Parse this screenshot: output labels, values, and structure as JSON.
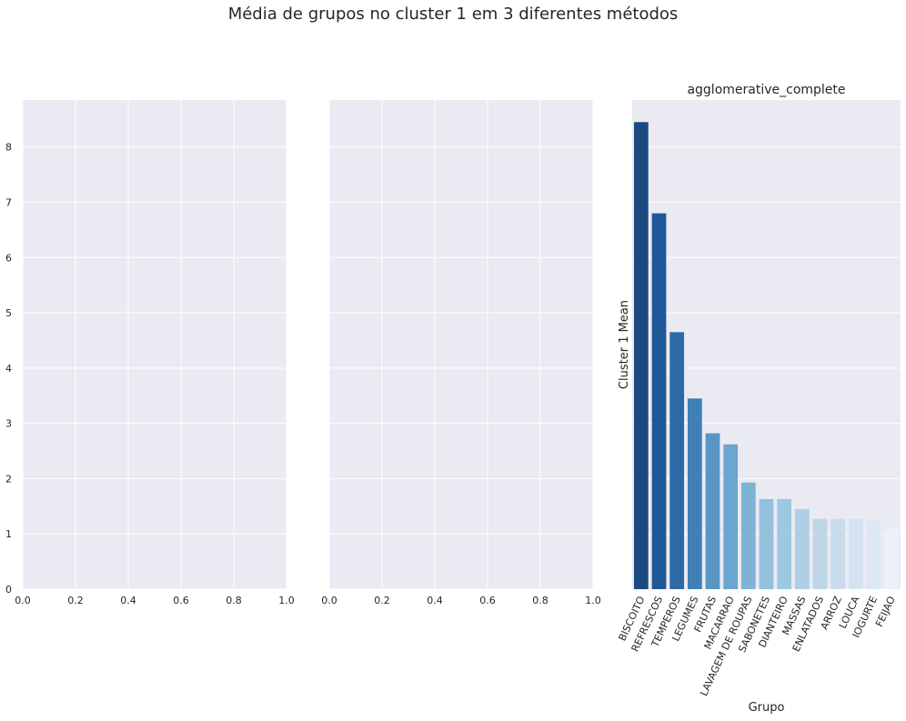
{
  "figure": {
    "suptitle": "Média de grupos no cluster 1 em 3 diferentes métodos"
  },
  "chart_data": [
    {
      "type": "empty",
      "title": "",
      "xlim": [
        0.0,
        1.0
      ],
      "ylim": [
        0,
        8.85
      ],
      "x_ticks": [
        "0.0",
        "0.2",
        "0.4",
        "0.6",
        "0.8",
        "1.0"
      ],
      "y_ticks": [
        "0",
        "1",
        "2",
        "3",
        "4",
        "5",
        "6",
        "7",
        "8"
      ],
      "xlabel": "",
      "ylabel": "",
      "grid": true
    },
    {
      "type": "empty",
      "title": "",
      "xlim": [
        0.0,
        1.0
      ],
      "ylim": [
        0,
        8.85
      ],
      "x_ticks": [
        "0.0",
        "0.2",
        "0.4",
        "0.6",
        "0.8",
        "1.0"
      ],
      "y_ticks": [],
      "xlabel": "",
      "ylabel": "",
      "grid": true
    },
    {
      "type": "bar",
      "title": "agglomerative_complete",
      "xlabel": "Grupo",
      "ylabel": "Cluster 1 Mean",
      "ylim": [
        0,
        8.85
      ],
      "grid": true,
      "categories": [
        "BISCOITO",
        "REFRESCOS",
        "TEMPEROS",
        "LEGUMES",
        "FRUTAS",
        "MACARRAO",
        "LAVAGEM DE ROUPAS",
        "SABONETES",
        "DIANTEIRO",
        "MASSAS",
        "ENLATADOS",
        "ARROZ",
        "LOUCA",
        "IOGURTE",
        "FEIJAO"
      ],
      "values": [
        8.45,
        6.8,
        4.65,
        3.45,
        2.82,
        2.62,
        1.93,
        1.63,
        1.63,
        1.45,
        1.27,
        1.27,
        1.27,
        1.27,
        1.1
      ],
      "colors": [
        "#1a4a7f",
        "#1f5898",
        "#2c69a6",
        "#3e80b7",
        "#5896c4",
        "#6aa6cf",
        "#7fb3d6",
        "#94c0dd",
        "#9dc8e1",
        "#aecfe4",
        "#bdd7e7",
        "#c8dced",
        "#d3e3f2",
        "#dce9f5",
        "#eaf1fa"
      ]
    }
  ]
}
